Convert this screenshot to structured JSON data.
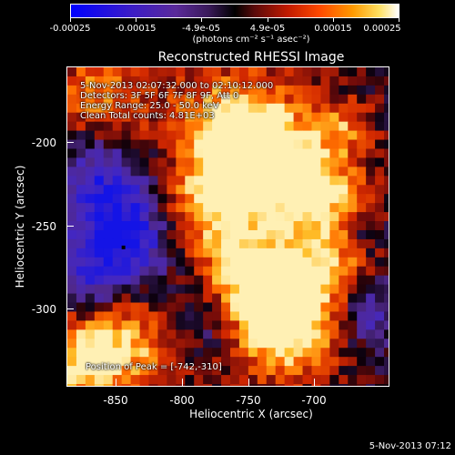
{
  "colorbar": {
    "labels": [
      "-0.00025",
      "-0.00015",
      "-4.9e-05",
      "4.9e-05",
      "0.00015",
      "0.00025"
    ],
    "units_text": "(photons cm⁻² s⁻¹ asec⁻²)",
    "range": [
      -0.00025,
      0.00025
    ]
  },
  "chart_data": {
    "type": "heatmap",
    "title": "Reconstructed RHESSI Image",
    "xlabel": "Heliocentric X (arcsec)",
    "ylabel": "Heliocentric Y (arcsec)",
    "xlim": [
      -875,
      -670
    ],
    "ylim": [
      -350,
      -148
    ],
    "x_ticks": [
      "-850",
      "-800",
      "-750",
      "-700"
    ],
    "y_ticks": [
      "-200",
      "-250",
      "-300"
    ],
    "peak": [
      -742,
      -310
    ]
  },
  "annotations": {
    "time_range": "5-Nov-2013 02:07:32.000 to 02:10:12.000",
    "detectors": "Detectors: 3F 5F 6F 7F 8F 9F, Att 0",
    "energy": "Energy Range: 25.0 - 50.0 keV",
    "clean": "Clean    Total counts: 4.81E+03",
    "peak": "Position of Peak = [-742,-310]"
  },
  "timestamp": "5-Nov-2013 07:12"
}
